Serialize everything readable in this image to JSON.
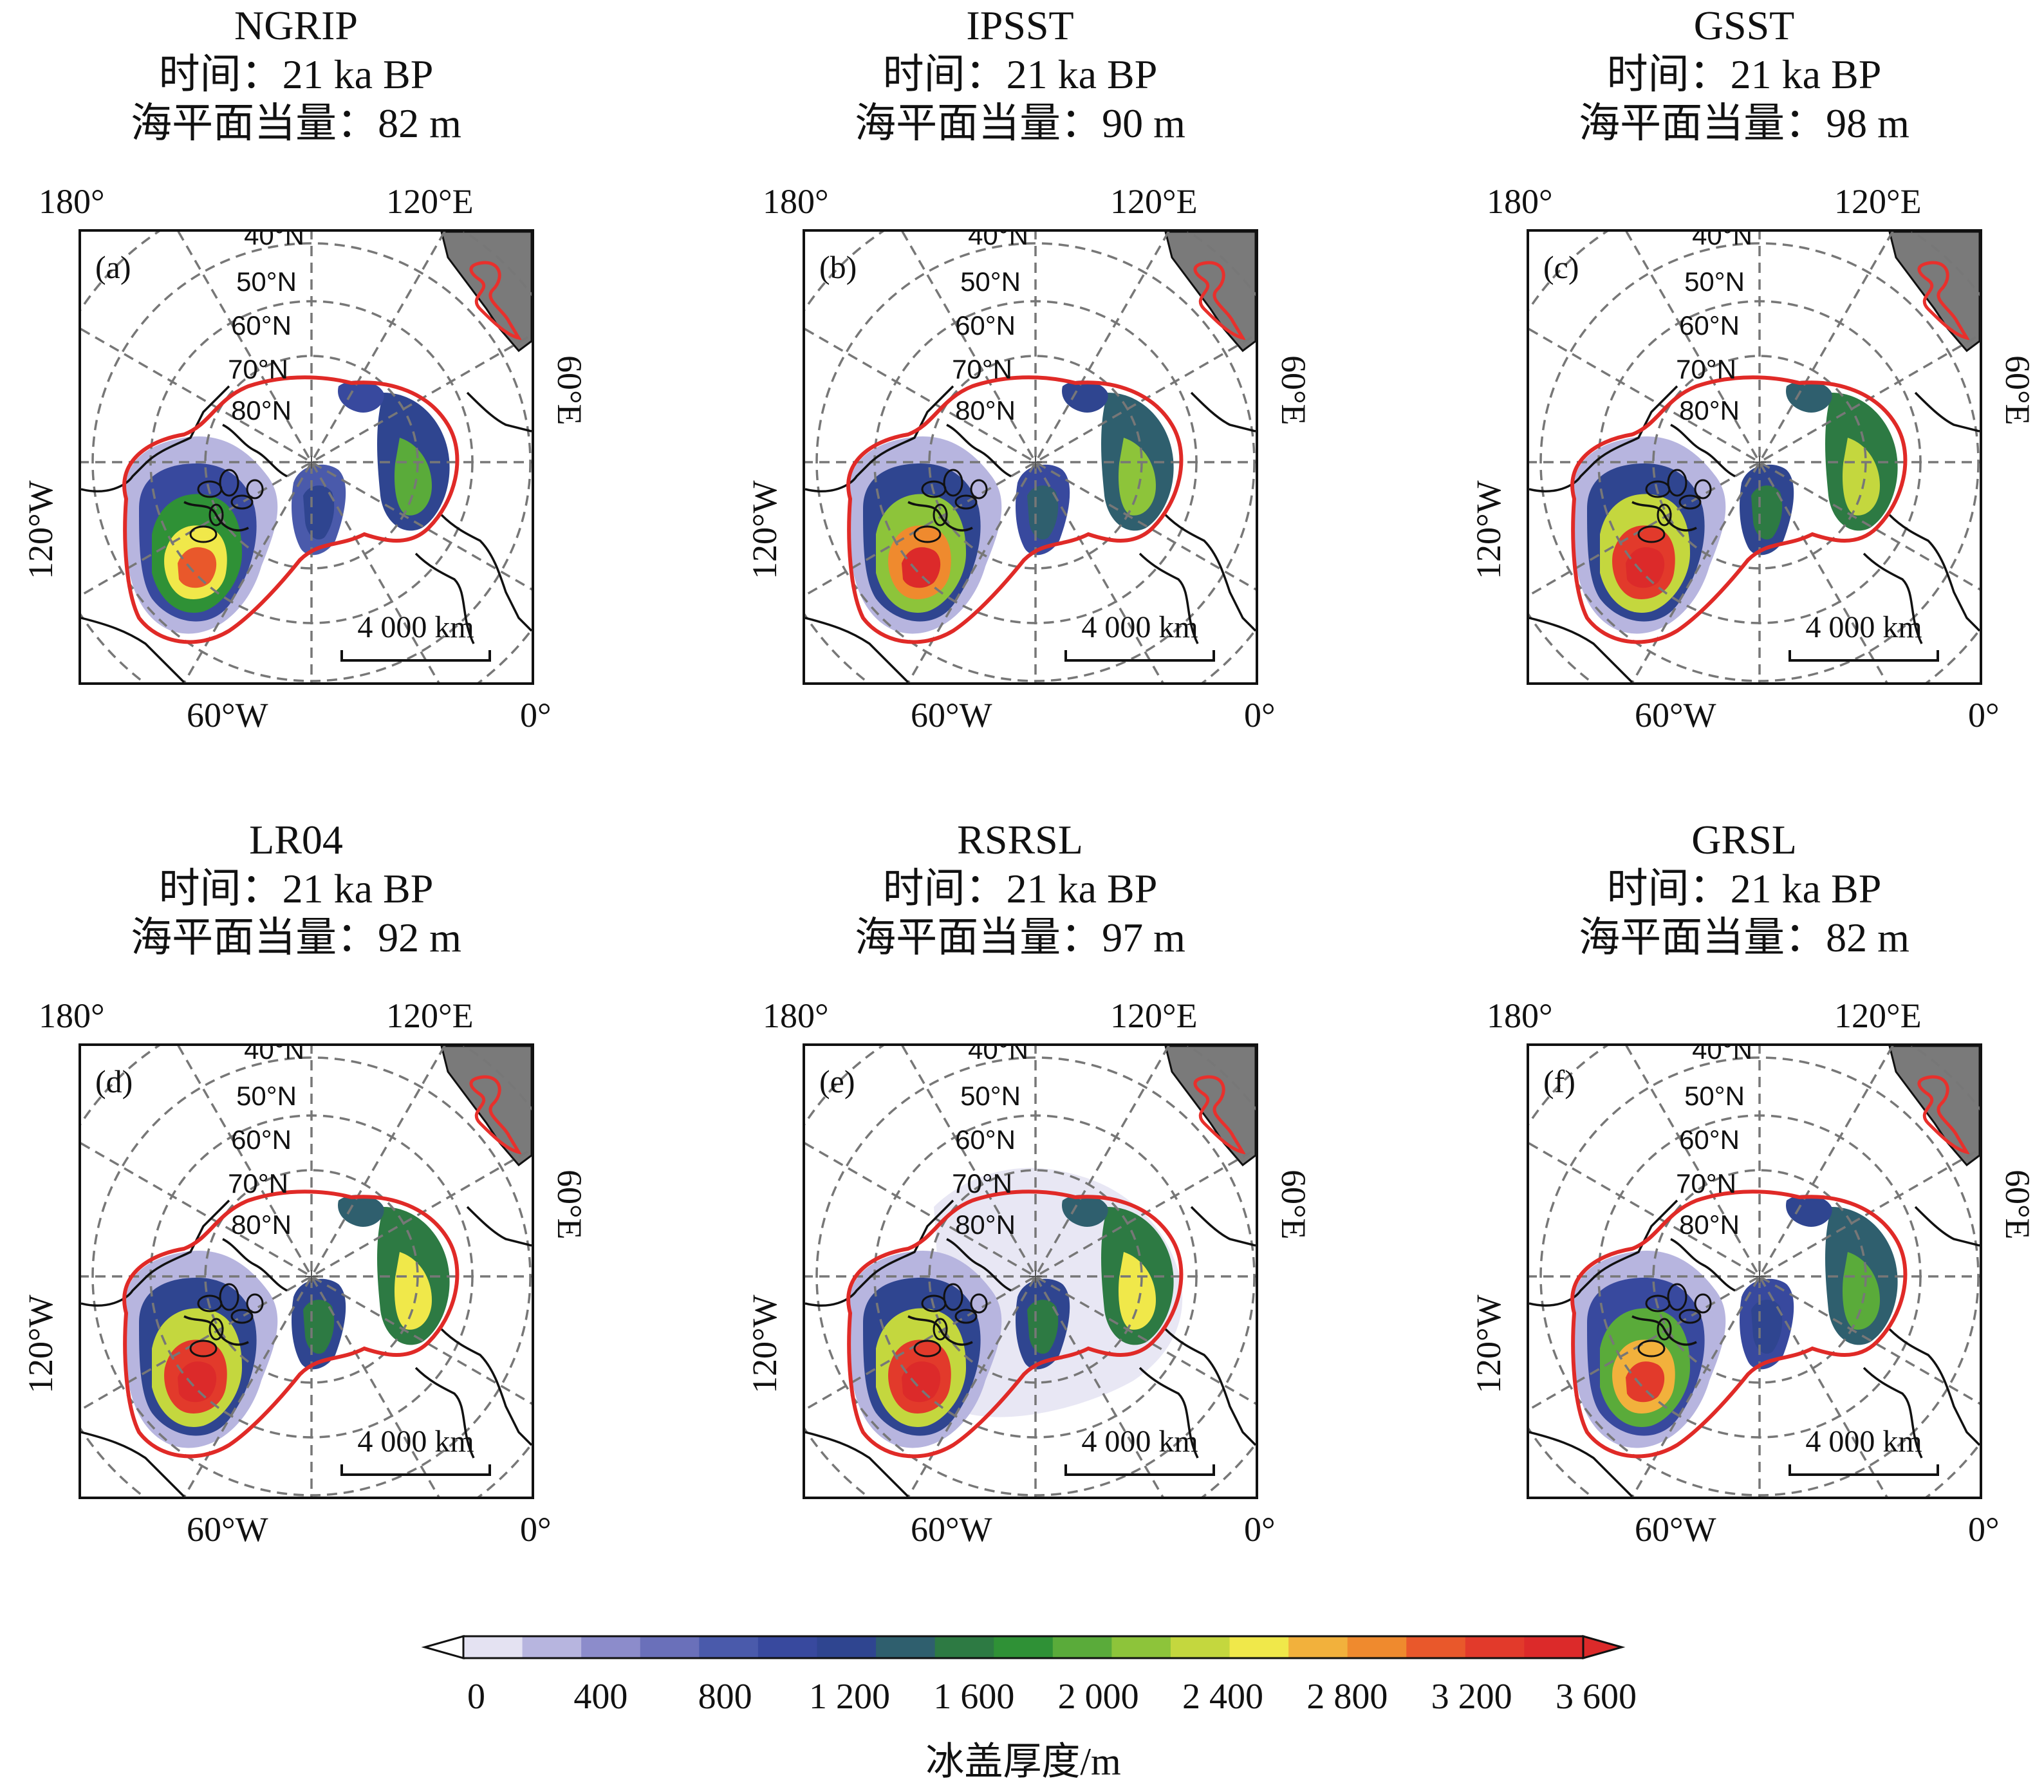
{
  "panels": [
    {
      "letter": "(a)",
      "name": "NGRIP",
      "time": "时间：21 ka BP",
      "sea_level": "海平面当量：82 m",
      "thickness_bias": 0.0,
      "spread": 0.0
    },
    {
      "letter": "(b)",
      "name": "IPSST",
      "time": "时间：21 ka BP",
      "sea_level": "海平面当量：90 m",
      "thickness_bias": 0.15,
      "spread": 0.0
    },
    {
      "letter": "(c)",
      "name": "GSST",
      "time": "时间：21 ka BP",
      "sea_level": "海平面当量：98 m",
      "thickness_bias": 0.25,
      "spread": 0.0
    },
    {
      "letter": "(d)",
      "name": "LR04",
      "time": "时间：21 ka BP",
      "sea_level": "海平面当量：92 m",
      "thickness_bias": 0.3,
      "spread": 0.0
    },
    {
      "letter": "(e)",
      "name": "RSRSL",
      "time": "时间：21 ka BP",
      "sea_level": "海平面当量：97 m",
      "thickness_bias": 0.28,
      "spread": 1.0
    },
    {
      "letter": "(f)",
      "name": "GRSL",
      "time": "时间：21 ka BP",
      "sea_level": "海平面当量：82 m",
      "thickness_bias": 0.05,
      "spread": 0.0
    }
  ],
  "map_labels": {
    "top_left": "180°",
    "top_right": "120°E",
    "left": "120°W",
    "right": "60°E",
    "bottom_left": "60°W",
    "bottom_right": "0°",
    "rings": [
      "40°N",
      "50°N",
      "60°N",
      "70°N",
      "80°N"
    ],
    "scale_bar": "4 000 km"
  },
  "colorbar": {
    "title": "冰盖厚度/m",
    "ticks": [
      "0",
      "400",
      "800",
      "1 200",
      "1 600",
      "2 000",
      "2 400",
      "2 800",
      "3 200",
      "3 600"
    ],
    "colors": [
      "#e4e2f2",
      "#b7b5df",
      "#8c8ccb",
      "#6a70ba",
      "#4a5aab",
      "#38499e",
      "#2f4590",
      "#2f5f6e",
      "#2d7a43",
      "#2f9136",
      "#5aab3a",
      "#8dc43a",
      "#c4d73e",
      "#f0e84a",
      "#f2b13c",
      "#ef8a2e",
      "#e9582b",
      "#e23a2b",
      "#dc2a2a"
    ]
  }
}
